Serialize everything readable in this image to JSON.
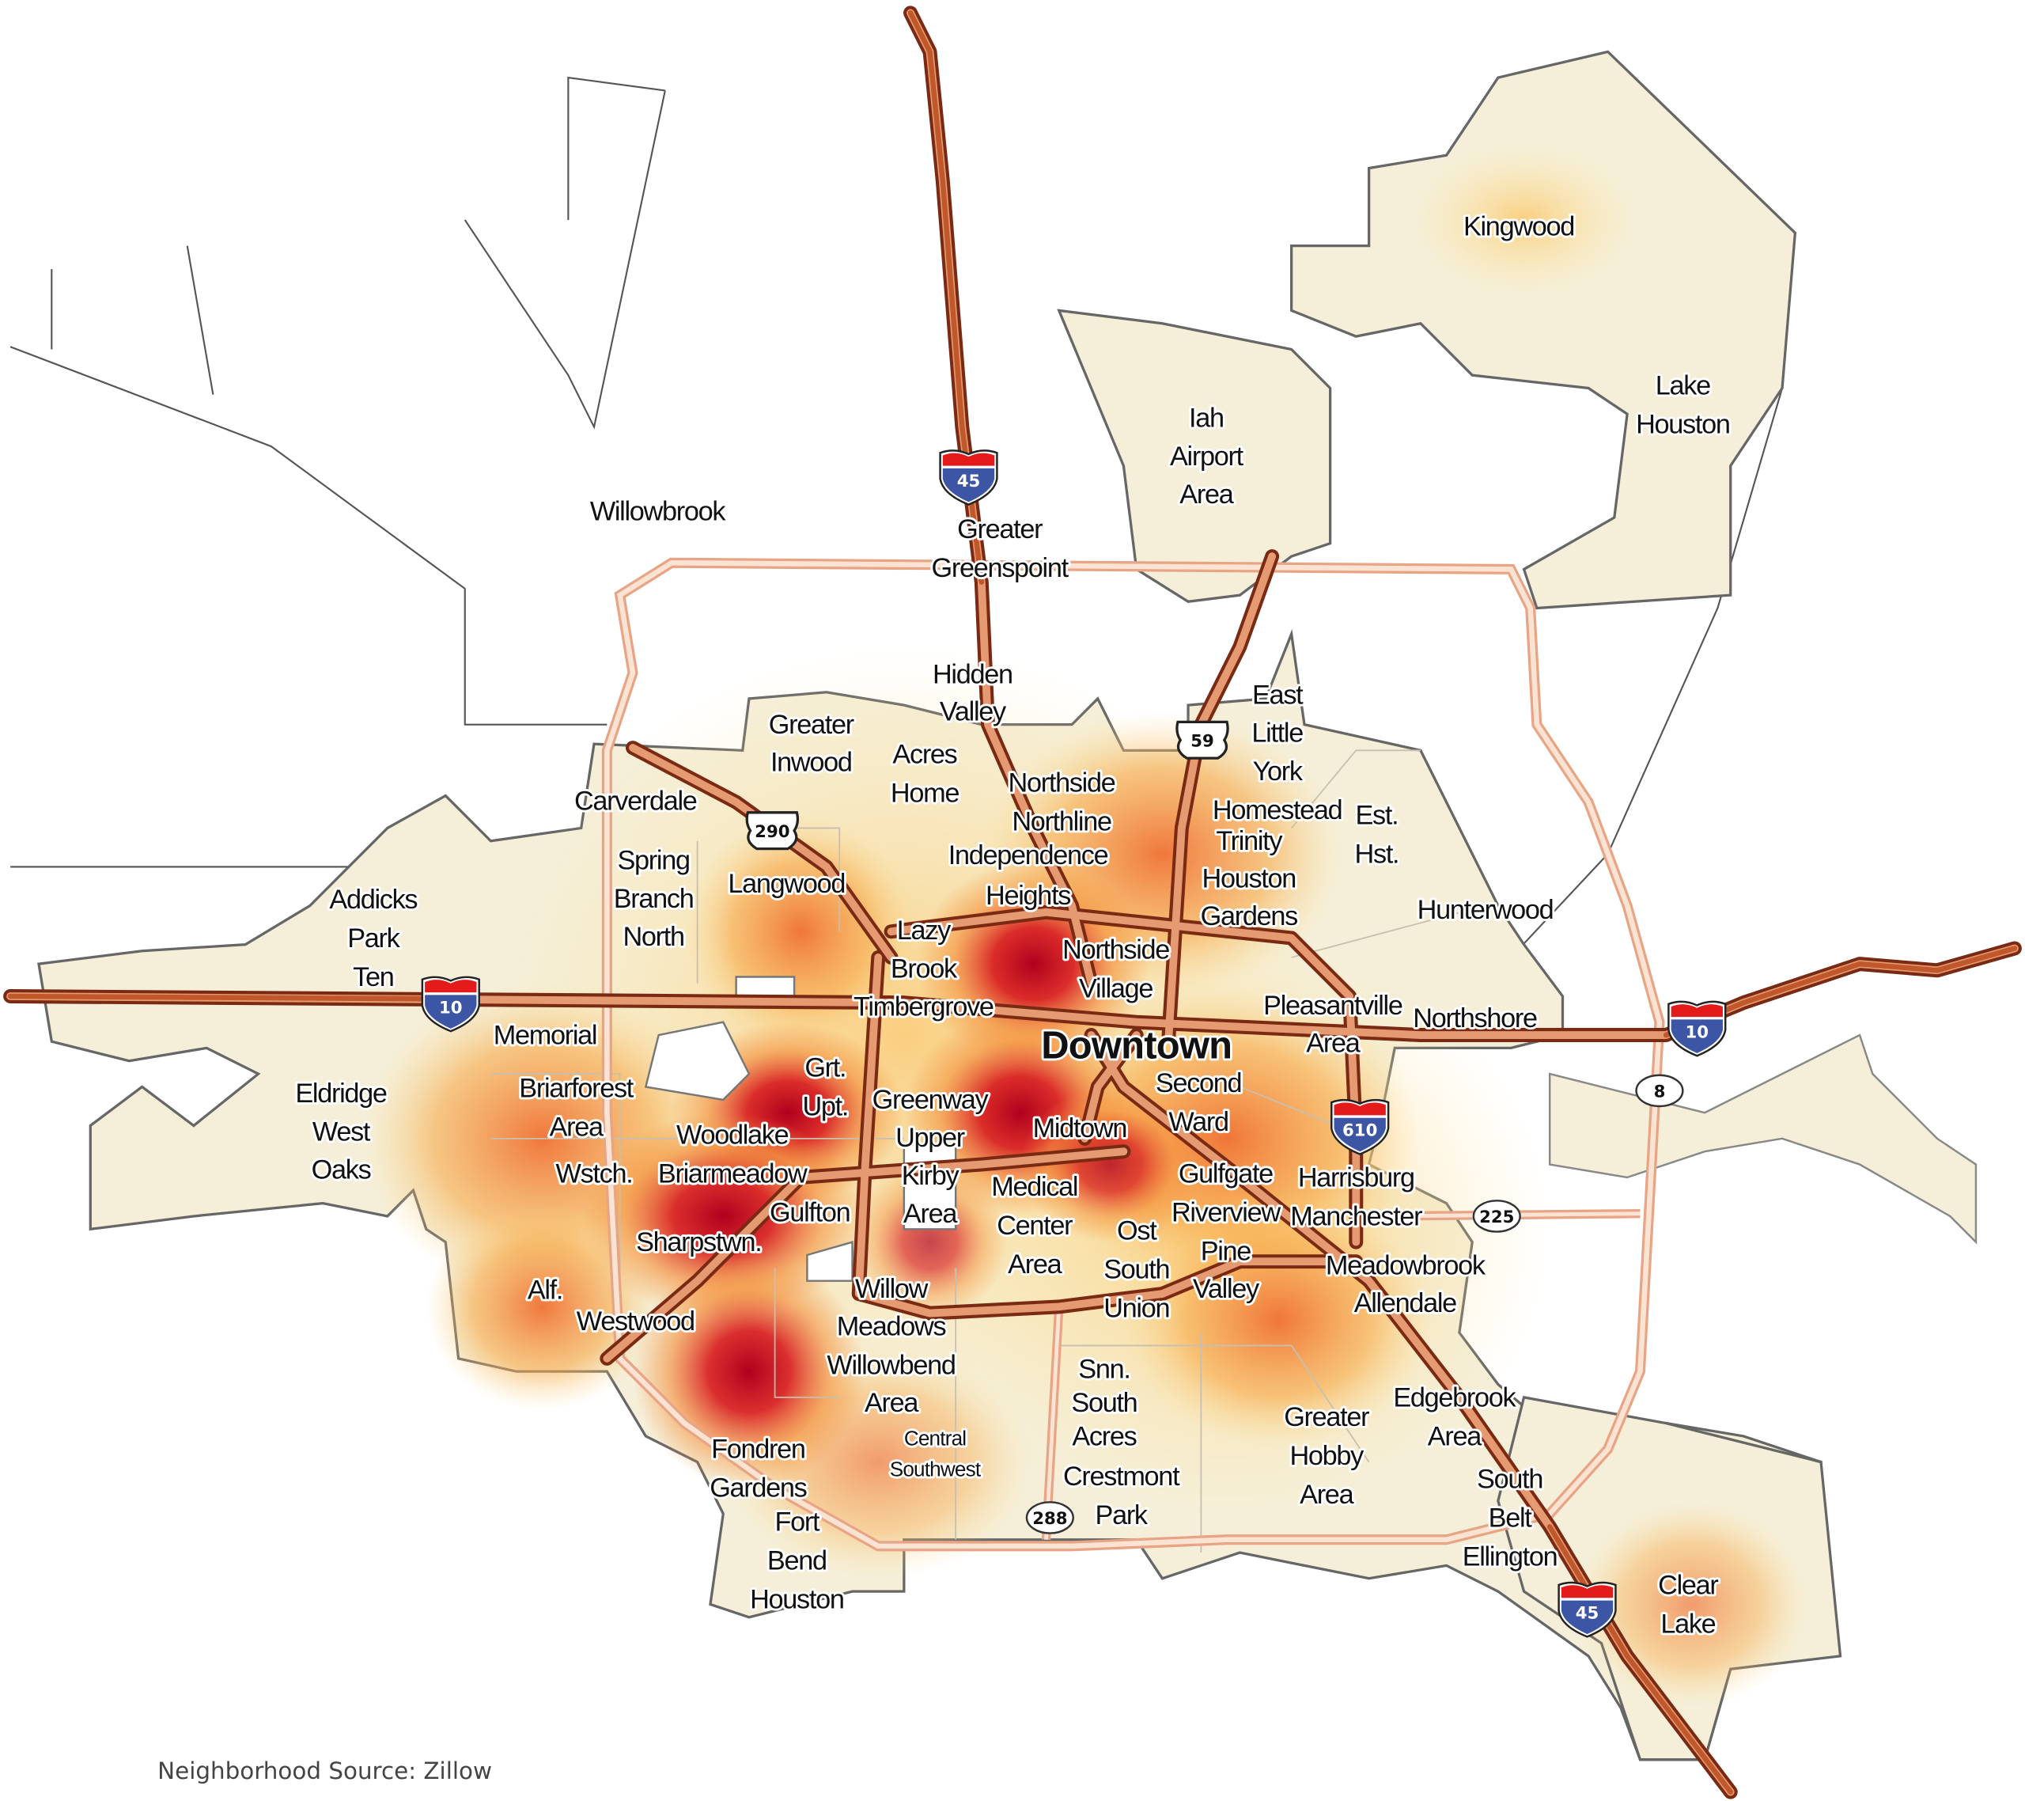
{
  "map": {
    "source_note": "Neighborhood Source: Zillow",
    "colors": {
      "background": "#ffffff",
      "area_base": "#f5efd9",
      "heat_low": "#fde7a6",
      "heat_mid": "#f4913c",
      "heat_high": "#d7191c",
      "heat_peak": "#b0001e",
      "highway": "#b5532e",
      "highway_casing": "#7a2a12",
      "beltway": "#f6c3a6",
      "boundary": "#666666"
    },
    "labels": [
      {
        "lines": [
          "Kingwood"
        ]
      },
      {
        "lines": [
          "Lake",
          "Houston"
        ]
      },
      {
        "lines": [
          "Iah",
          "Airport",
          "Area"
        ]
      },
      {
        "lines": [
          "Willowbrook"
        ]
      },
      {
        "lines": [
          "Greater",
          "Greenspoint"
        ]
      },
      {
        "lines": [
          "Hidden",
          "Valley"
        ]
      },
      {
        "lines": [
          "East",
          "Little",
          "York"
        ]
      },
      {
        "lines": [
          "Greater",
          "Inwood"
        ]
      },
      {
        "lines": [
          "Acres",
          "Home"
        ]
      },
      {
        "lines": [
          "Carverdale"
        ]
      },
      {
        "lines": [
          "Northside",
          "Northline"
        ]
      },
      {
        "lines": [
          "Homestead"
        ]
      },
      {
        "lines": [
          "Est.",
          "Hst."
        ]
      },
      {
        "lines": [
          "Trinity",
          "Houston",
          "Gardens"
        ]
      },
      {
        "lines": [
          "Independence",
          "Heights"
        ]
      },
      {
        "lines": [
          "Spring",
          "Branch",
          "North"
        ]
      },
      {
        "lines": [
          "Langwood"
        ]
      },
      {
        "lines": [
          "Addicks",
          "Park",
          "Ten"
        ]
      },
      {
        "lines": [
          "Hunterwood"
        ]
      },
      {
        "lines": [
          "Lazy",
          "Brook",
          "Timbergrove"
        ]
      },
      {
        "lines": [
          "Northside",
          "Village"
        ]
      },
      {
        "lines": [
          "Pleasantville",
          "Area"
        ]
      },
      {
        "lines": [
          "Northshore"
        ]
      },
      {
        "lines": [
          "Memorial"
        ]
      },
      {
        "lines": [
          "Downtown"
        ]
      },
      {
        "lines": [
          "Grt.",
          "Upt."
        ]
      },
      {
        "lines": [
          "Second",
          "Ward"
        ]
      },
      {
        "lines": [
          "Briarforest",
          "Area"
        ]
      },
      {
        "lines": [
          "Eldridge",
          "West",
          "Oaks"
        ]
      },
      {
        "lines": [
          "Greenway",
          "Upper",
          "Kirby",
          "Area"
        ]
      },
      {
        "lines": [
          "Midtown"
        ]
      },
      {
        "lines": [
          "Woodlake",
          "Briarmeadow"
        ]
      },
      {
        "lines": [
          "Wstch."
        ]
      },
      {
        "lines": [
          "Gulfgate",
          "Riverview"
        ]
      },
      {
        "lines": [
          "Harrisburg",
          "Manchester"
        ]
      },
      {
        "lines": [
          "Medical",
          "Center",
          "Area"
        ]
      },
      {
        "lines": [
          "Gulfton"
        ]
      },
      {
        "lines": [
          "Sharpstwn."
        ]
      },
      {
        "lines": [
          "Ost",
          "South",
          "Union"
        ]
      },
      {
        "lines": [
          "Pine",
          "Valley"
        ]
      },
      {
        "lines": [
          "Meadowbrook",
          "Allendale"
        ]
      },
      {
        "lines": [
          "Alf."
        ]
      },
      {
        "lines": [
          "Willow",
          "Meadows"
        ]
      },
      {
        "lines": [
          "Westwood"
        ]
      },
      {
        "lines": [
          "Willowbend",
          "Area"
        ]
      },
      {
        "lines": [
          "Snn.",
          "South",
          "Acres"
        ]
      },
      {
        "lines": [
          "Crestmont",
          "Park"
        ]
      },
      {
        "lines": [
          "Edgebrook",
          "Area"
        ]
      },
      {
        "lines": [
          "Greater",
          "Hobby",
          "Area"
        ]
      },
      {
        "lines": [
          "Fondren",
          "Gardens"
        ]
      },
      {
        "lines": [
          "Central",
          "Southwest"
        ]
      },
      {
        "lines": [
          "South",
          "Belt",
          "Ellington"
        ]
      },
      {
        "lines": [
          "Fort",
          "Bend",
          "Houston"
        ]
      },
      {
        "lines": [
          "Clear",
          "Lake"
        ]
      }
    ],
    "shields": [
      {
        "type": "interstate",
        "number": "45",
        "icon": "interstate-shield-icon"
      },
      {
        "type": "interstate",
        "number": "45",
        "icon": "interstate-shield-icon"
      },
      {
        "type": "interstate",
        "number": "10",
        "icon": "interstate-shield-icon"
      },
      {
        "type": "interstate",
        "number": "10",
        "icon": "interstate-shield-icon"
      },
      {
        "type": "interstate",
        "number": "610",
        "icon": "interstate-shield-icon"
      },
      {
        "type": "us",
        "number": "290",
        "icon": "us-route-shield-icon"
      },
      {
        "type": "us",
        "number": "59",
        "icon": "us-route-shield-icon"
      },
      {
        "type": "state",
        "number": "8",
        "icon": "state-route-oval-icon"
      },
      {
        "type": "state",
        "number": "225",
        "icon": "state-route-oval-icon"
      },
      {
        "type": "state",
        "number": "288",
        "icon": "state-route-oval-icon"
      }
    ]
  }
}
